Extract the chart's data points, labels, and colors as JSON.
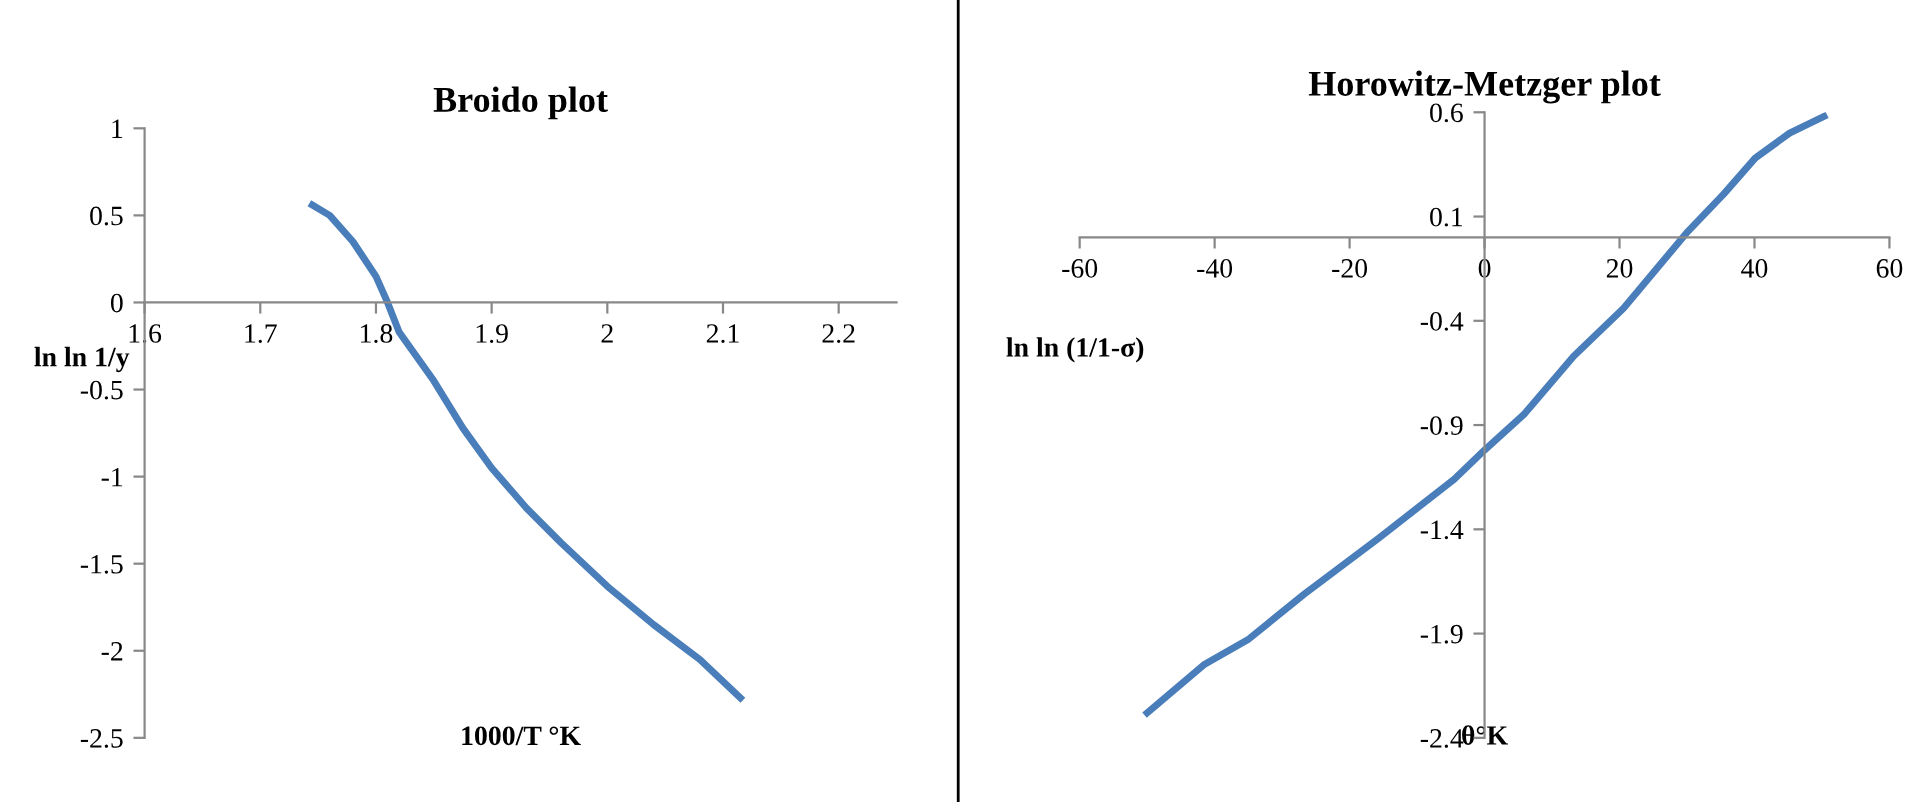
{
  "chart_data": [
    {
      "type": "line",
      "title": "Broido plot",
      "xlabel": "1000/T °K",
      "ylabel": "ln ln 1/y",
      "xlim": [
        1.6,
        2.25
      ],
      "xticks": [
        1.6,
        1.7,
        1.8,
        1.9,
        2,
        2.1,
        2.2
      ],
      "ylim": [
        -2.5,
        1
      ],
      "yticks": [
        -2.5,
        -2,
        -1.5,
        -1,
        -0.5,
        0,
        0.5,
        1
      ],
      "grid": false,
      "legend": false,
      "series": [
        {
          "color": "#4a7ebb",
          "x": [
            1.745,
            1.76,
            1.78,
            1.8,
            1.81,
            1.82,
            1.85,
            1.875,
            1.9,
            1.93,
            1.96,
            2.0,
            2.04,
            2.08,
            2.115
          ],
          "values": [
            0.56,
            0.5,
            0.35,
            0.15,
            0.0,
            -0.17,
            -0.45,
            -0.72,
            -0.95,
            -1.18,
            -1.38,
            -1.63,
            -1.85,
            -2.05,
            -2.27
          ]
        }
      ]
    },
    {
      "type": "line",
      "title": "Horowitz-Metzger plot",
      "xlabel": "θ°K",
      "ylabel": "ln ln (1/1-σ)",
      "xlim": [
        -60,
        60
      ],
      "xticks": [
        -60,
        -40,
        -20,
        0,
        20,
        40,
        60
      ],
      "ylim": [
        -2.4,
        0.6
      ],
      "yticks": [
        -2.4,
        -1.9,
        -1.4,
        -0.9,
        -0.4,
        0.1,
        0.6
      ],
      "grid": false,
      "legend": false,
      "series": [
        {
          "color": "#4a7ebb",
          "x": [
            -50,
            -41.6,
            -35.1,
            -26.7,
            -15.6,
            -4.5,
            0,
            5.8,
            13.2,
            20.6,
            29.9,
            35.5,
            40.1,
            45.2,
            50.3
          ],
          "values": [
            -2.28,
            -2.05,
            -1.93,
            -1.71,
            -1.44,
            -1.16,
            -1.02,
            -0.85,
            -0.57,
            -0.34,
            0.02,
            0.21,
            0.38,
            0.5,
            0.58
          ]
        }
      ]
    }
  ]
}
